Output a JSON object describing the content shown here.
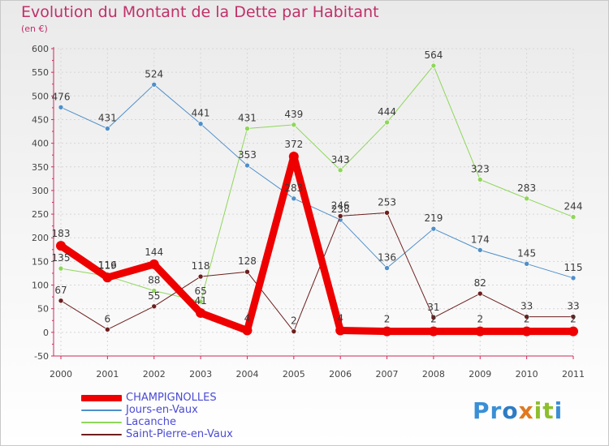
{
  "title": "Evolution du Montant de la Dette par Habitant",
  "subtitle": "(en €)",
  "logo": {
    "text": "Proxiti",
    "letters": [
      "P",
      "r",
      "o",
      "x",
      "i",
      "t",
      "i"
    ],
    "colors": [
      "#3a8fd6",
      "#3a8fd6",
      "#2e7cc4",
      "#e07a1f",
      "#8dbf2d",
      "#8dbf2d",
      "#3a8fd6"
    ]
  },
  "chart_data": {
    "type": "line",
    "x": [
      "2000",
      "2001",
      "2002",
      "2003",
      "2004",
      "2005",
      "2006",
      "2007",
      "2008",
      "2009",
      "2010",
      "2011"
    ],
    "ylim": [
      -50,
      600
    ],
    "yticks": [
      "-50",
      "0",
      "50",
      "100",
      "150",
      "200",
      "250",
      "300",
      "350",
      "400",
      "450",
      "500",
      "550",
      "600"
    ],
    "grid": true,
    "legend_position": "bottom-left",
    "series": [
      {
        "name": "CHAMPIGNOLLES",
        "color": "#ee0000",
        "width": 9,
        "values": [
          183,
          116,
          144,
          41,
          4,
          372,
          4,
          2,
          2,
          2,
          2,
          2
        ],
        "labels": [
          "183",
          "116",
          "144",
          "41",
          "4",
          "372",
          "4",
          "2",
          "2",
          "2",
          "2",
          "2"
        ]
      },
      {
        "name": "Jours-en-Vaux",
        "color": "#4f8fc9",
        "width": 1,
        "values": [
          476,
          431,
          524,
          441,
          353,
          283,
          238,
          136,
          219,
          174,
          145,
          115
        ],
        "labels": [
          "476",
          "431",
          "524",
          "441",
          "353",
          "283",
          "238",
          "136",
          "219",
          "174",
          "145",
          "115"
        ]
      },
      {
        "name": "Lacanche",
        "color": "#8fd65a",
        "width": 1,
        "values": [
          135,
          119,
          88,
          65,
          431,
          439,
          343,
          444,
          564,
          323,
          283,
          244
        ],
        "labels": [
          "135",
          "119",
          "88",
          "65",
          "431",
          "439",
          "343",
          "444",
          "564",
          "323",
          "283",
          "244"
        ]
      },
      {
        "name": "Saint-Pierre-en-Vaux",
        "color": "#6d1e1e",
        "width": 1,
        "values": [
          67,
          6,
          55,
          118,
          128,
          2,
          246,
          253,
          31,
          82,
          33,
          33
        ],
        "labels": [
          "67",
          "6",
          "55",
          "118",
          "128",
          "2",
          "246",
          "253",
          "31",
          "82",
          "33",
          "33"
        ]
      }
    ]
  }
}
